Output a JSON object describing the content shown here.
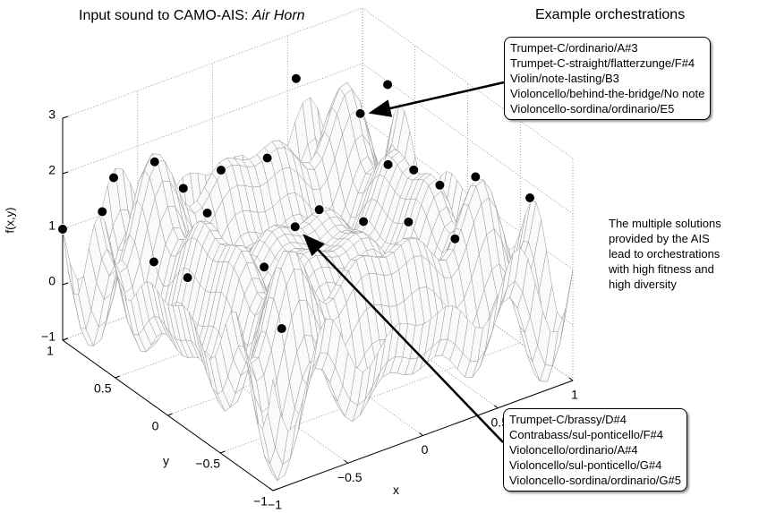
{
  "chart_data": {
    "type": "surface",
    "title": "Input sound to CAMO-AIS:",
    "title_italic": "Air Horn",
    "xlabel": "x",
    "ylabel": "y",
    "zlabel": "f(x,y)",
    "xlim": [
      -1,
      1
    ],
    "ylim": [
      -1,
      1
    ],
    "zlim": [
      -1,
      3
    ],
    "xticks": [
      {
        "value": -1,
        "label": "−1"
      },
      {
        "value": -0.5,
        "label": "−0.5"
      },
      0,
      0.5,
      1
    ],
    "yticks": [
      {
        "value": -1,
        "label": "−1"
      },
      {
        "value": -0.5,
        "label": "−0.5"
      },
      0,
      0.5,
      1
    ],
    "zticks": [
      {
        "value": -1,
        "label": "−1"
      },
      0,
      1,
      2,
      3
    ],
    "grid": true,
    "points": {
      "x": [
        0.34,
        0.41,
        0.81,
        0.49,
        -0.07,
        -0.28,
        -0.59,
        -0.8,
        -0.49,
        0.57,
        0.66,
        0.8,
        0.91,
        -0.82,
        -1,
        -0.4,
        0.08,
        -0.2,
        0.27,
        0.5,
        0.67,
        -0.56,
        -0.14,
        -0.44,
        -0.1
      ],
      "y": [
        0.08,
        0.79,
        0.49,
        0.03,
        0.38,
        0.52,
        0.71,
        0.8,
        0.58,
        -0.1,
        -0.22,
        -0.36,
        -0.72,
        0.88,
        1,
        0.48,
        0.1,
        -0.07,
        -0.05,
        -0.15,
        -0.35,
        0.76,
        0.31,
        0.61,
        0.2
      ],
      "z": [
        3,
        2.6,
        2.5,
        2,
        2.2,
        2,
        2.2,
        2,
        1.8,
        2,
        1.8,
        2,
        2,
        1.3,
        1,
        1.4,
        1.5,
        1.7,
        1.3,
        1.2,
        1,
        0.3,
        0.4,
        0.1,
        -0.6
      ]
    },
    "header": "Example orchestrations",
    "callouts": [
      [
        "Trumpet-C/ordinario/A#3",
        "Trumpet-C-straight/flatterzunge/F#4",
        "Violin/note-lasting/B3",
        "Violoncello/behind-the-bridge/No note",
        "Violoncello-sordina/ordinario/E5"
      ],
      [
        "Trumpet-C/brassy/D#4",
        "Contrabass/sul-ponticello/F#4",
        "Violoncello/ordinario/A#4",
        "Violoncello/sul-ponticello/G#4",
        "Violoncello-sordina/ordinario/G#5"
      ]
    ],
    "note": [
      "The multiple solutions",
      "provided by the AIS",
      "lead to orchestrations",
      "with high fitness and",
      "high diversity"
    ]
  }
}
